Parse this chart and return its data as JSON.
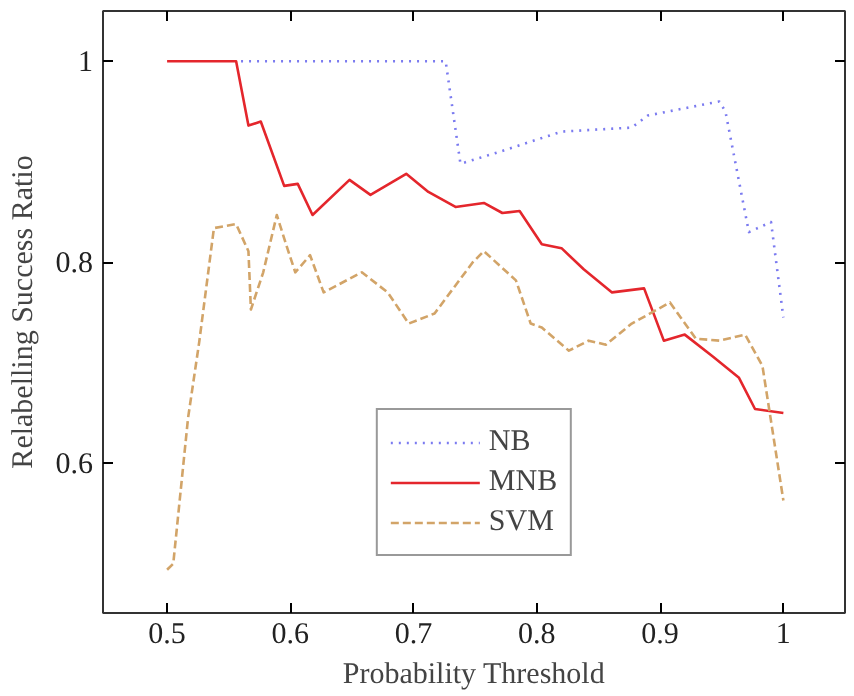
{
  "chart_data": {
    "type": "line",
    "xlabel": "Probability Threshold",
    "ylabel": "Relabelling Success Ratio",
    "xlim": [
      0.448,
      1.05
    ],
    "ylim": [
      0.451,
      1.05
    ],
    "xticks": [
      0.5,
      0.6,
      0.7,
      0.8,
      0.9,
      1
    ],
    "yticks": [
      0.6,
      0.8,
      1
    ],
    "grid": false,
    "legend": "bottom",
    "marker": "none",
    "series": [
      {
        "name": "NB",
        "color": "#7b7bf0",
        "line_style": "dotted",
        "x": [
          0.56,
          0.726,
          0.738,
          0.77,
          0.82,
          0.877,
          0.89,
          0.948,
          0.953,
          0.972,
          0.99,
          1.0
        ],
        "values": [
          1.0,
          1.0,
          0.898,
          0.91,
          0.93,
          0.934,
          0.946,
          0.96,
          0.95,
          0.83,
          0.84,
          0.745
        ]
      },
      {
        "name": "MNB",
        "color": "#e4262c",
        "line_style": "solid",
        "x": [
          0.5,
          0.556,
          0.566,
          0.576,
          0.595,
          0.606,
          0.618,
          0.648,
          0.665,
          0.694,
          0.712,
          0.734,
          0.757,
          0.772,
          0.786,
          0.804,
          0.82,
          0.838,
          0.861,
          0.887,
          0.903,
          0.92,
          0.943,
          0.964,
          0.977,
          1.0
        ],
        "values": [
          1.0,
          1.0,
          0.936,
          0.94,
          0.876,
          0.878,
          0.847,
          0.882,
          0.867,
          0.888,
          0.87,
          0.855,
          0.859,
          0.849,
          0.851,
          0.818,
          0.814,
          0.793,
          0.77,
          0.774,
          0.722,
          0.728,
          0.706,
          0.685,
          0.654,
          0.65
        ]
      },
      {
        "name": "SVM",
        "color": "#d2a468",
        "line_style": "dashed",
        "x": [
          0.5,
          0.505,
          0.517,
          0.526,
          0.538,
          0.556,
          0.566,
          0.568,
          0.578,
          0.589,
          0.597,
          0.604,
          0.616,
          0.627,
          0.658,
          0.679,
          0.696,
          0.717,
          0.748,
          0.757,
          0.783,
          0.795,
          0.804,
          0.826,
          0.842,
          0.856,
          0.877,
          0.908,
          0.929,
          0.948,
          0.969,
          0.983,
          1.0
        ],
        "values": [
          0.494,
          0.5,
          0.645,
          0.72,
          0.834,
          0.838,
          0.811,
          0.753,
          0.79,
          0.847,
          0.816,
          0.79,
          0.807,
          0.77,
          0.79,
          0.77,
          0.739,
          0.749,
          0.8,
          0.811,
          0.782,
          0.739,
          0.735,
          0.712,
          0.722,
          0.718,
          0.739,
          0.76,
          0.724,
          0.722,
          0.728,
          0.697,
          0.563
        ]
      }
    ]
  }
}
